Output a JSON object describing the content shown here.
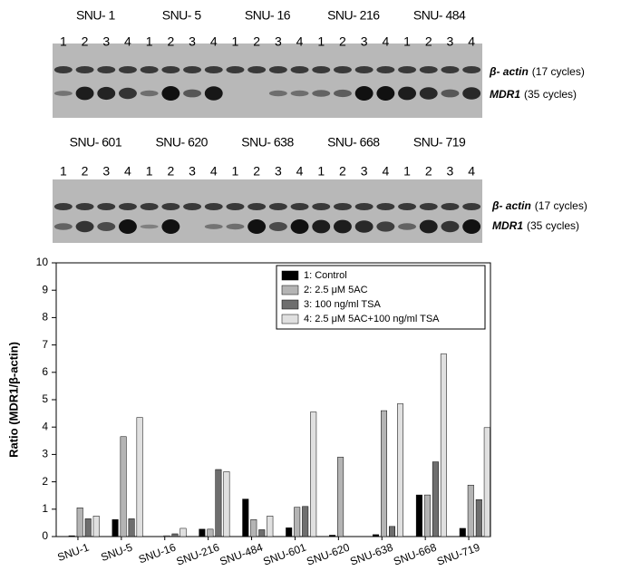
{
  "gels": [
    {
      "cell_lines": [
        "SNU- 1",
        "SNU- 5",
        "SNU- 16",
        "SNU- 216",
        "SNU- 484"
      ],
      "lanes": [
        "1",
        "2",
        "3",
        "4"
      ],
      "bands": [
        {
          "name": "β- actin",
          "detail": "(17 cycles)"
        },
        {
          "name": "MDR1",
          "detail": "(35 cycles)"
        }
      ]
    },
    {
      "cell_lines": [
        "SNU- 601",
        "SNU- 620",
        "SNU- 638",
        "SNU- 668",
        "SNU- 719"
      ],
      "lanes": [
        "1",
        "2",
        "3",
        "4"
      ],
      "bands": [
        {
          "name": "β- actin",
          "detail": "(17 cycles)"
        },
        {
          "name": "MDR1",
          "detail": "(35 cycles)"
        }
      ]
    }
  ],
  "chart_data": {
    "type": "bar",
    "ylabel": "Ratio (MDR1/β-actin)",
    "categories": [
      "SNU-1",
      "SNU-5",
      "SNU-16",
      "SNU-216",
      "SNU-484",
      "SNU-601",
      "SNU-620",
      "SNU-638",
      "SNU-668",
      "SNU-719"
    ],
    "series": [
      {
        "name": "1: Control",
        "color": "#000000",
        "values": [
          0.03,
          0.62,
          0,
          0.27,
          1.37,
          0.32,
          0.05,
          0.07,
          1.52,
          0.3
        ]
      },
      {
        "name": "2: 2.5 μM 5AC",
        "color": "#b4b4b4",
        "values": [
          1.05,
          3.65,
          0.03,
          0.27,
          0.62,
          1.07,
          2.9,
          4.6,
          1.52,
          1.88
        ]
      },
      {
        "name": "3: 100 ng/ml TSA",
        "color": "#6e6e6e",
        "values": [
          0.65,
          0.65,
          0.1,
          2.45,
          0.25,
          1.1,
          0,
          0.37,
          2.73,
          1.35
        ]
      },
      {
        "name": "4: 2.5 μM 5AC+100 ng/ml TSA",
        "color": "#e0e0e0",
        "values": [
          0.75,
          4.35,
          0.3,
          2.37,
          0.75,
          4.55,
          0,
          4.85,
          6.67,
          3.98
        ]
      }
    ],
    "ylim": [
      0,
      10
    ],
    "yticks": [
      0,
      1,
      2,
      3,
      4,
      5,
      6,
      7,
      8,
      9,
      10
    ],
    "legend": "upper right"
  }
}
